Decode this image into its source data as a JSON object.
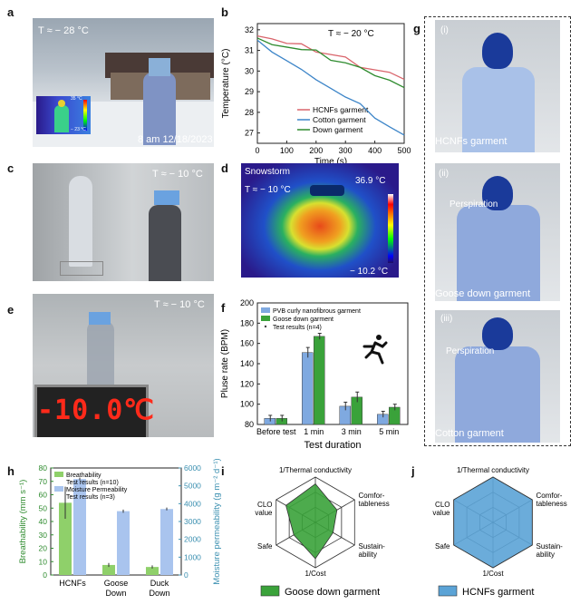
{
  "panels": {
    "a": {
      "letter": "a",
      "temp": "T ≈ − 28 °C",
      "timestamp": "8 am  12/18/2023",
      "thermo_hi": "35 °C",
      "thermo_lo": "− 23 °C"
    },
    "b": {
      "letter": "b",
      "temp": "T ≈ − 20 °C"
    },
    "c": {
      "letter": "c",
      "temp": "T ≈ − 10 °C"
    },
    "d": {
      "letter": "d",
      "title": "Snowstorm",
      "temp": "T ≈ − 10 °C",
      "hi": "36.9 °C",
      "lo": "− 10.2 °C"
    },
    "e": {
      "letter": "e",
      "temp": "T ≈ − 10 °C",
      "display": "-10.0℃"
    },
    "f": {
      "letter": "f"
    },
    "g": {
      "letter": "g",
      "sub1": "(i)",
      "label1": "HCNFs garment",
      "sub2": "(ii)",
      "persp2": "Perspiration",
      "label2": "Goose down garment",
      "sub3": "(iii)",
      "persp3": "Perspiration",
      "label3": "Cotton garment"
    },
    "h": {
      "letter": "h"
    },
    "i": {
      "letter": "i",
      "legend": "Goose down garment"
    },
    "j": {
      "letter": "j",
      "legend": "HCNFs garment"
    }
  },
  "radar_labels": {
    "top": "1/Thermal conductivity",
    "right1": "Comfor-",
    "right2": "tableness",
    "rbot1": "Sustain-",
    "rbot2": "ability",
    "bottom": "1/Cost",
    "left_b": "Safe",
    "left1": "CLO",
    "left2": "value"
  },
  "colors": {
    "red": "#d9646b",
    "blue": "#3d85c8",
    "green": "#2e8b2e",
    "goose": "#3aa23a",
    "hcnf": "#5ba3d6",
    "barblue": "#7fa9e0"
  },
  "chart_data": [
    {
      "type": "line",
      "xlabel": "Time (s)",
      "ylabel": "Temperature (°C)",
      "xlim": [
        0,
        500
      ],
      "ylim": [
        26.5,
        32.3
      ],
      "xticks": [
        0,
        100,
        200,
        300,
        400,
        500
      ],
      "yticks": [
        27,
        28,
        29,
        30,
        31,
        32
      ],
      "series": [
        {
          "name": "HCNFs garment",
          "x": [
            0,
            50,
            100,
            150,
            200,
            250,
            300,
            350,
            400,
            450,
            500
          ],
          "y": [
            31.7,
            31.6,
            31.3,
            31.2,
            31.0,
            30.8,
            30.6,
            30.3,
            30.1,
            29.9,
            29.6
          ]
        },
        {
          "name": "Cotton garment",
          "x": [
            0,
            50,
            100,
            150,
            200,
            250,
            300,
            350,
            400,
            450,
            500
          ],
          "y": [
            31.5,
            31.0,
            30.5,
            30.0,
            29.7,
            29.2,
            28.7,
            28.3,
            27.8,
            27.3,
            26.9
          ]
        },
        {
          "name": "Down garment",
          "x": [
            0,
            50,
            100,
            150,
            200,
            250,
            300,
            350,
            400,
            450,
            500
          ],
          "y": [
            31.6,
            31.4,
            31.2,
            31.0,
            30.9,
            30.6,
            30.4,
            30.1,
            29.9,
            29.6,
            29.2
          ]
        }
      ]
    },
    {
      "type": "bar",
      "xlabel": "Test duration",
      "ylabel": "Pluse rate  (BPM)",
      "ylim": [
        80,
        200
      ],
      "yticks": [
        80,
        100,
        120,
        140,
        160,
        180,
        200
      ],
      "categories": [
        "Before test",
        "1 min",
        "3 min",
        "5 min"
      ],
      "legend": [
        "PVB curly nanofibrous garment",
        "Goose down garment",
        "Test results (n=4)"
      ],
      "series": [
        {
          "name": "PVB curly nanofibrous garment",
          "values": [
            86,
            151,
            98,
            90
          ],
          "err": [
            3,
            5,
            4,
            3
          ]
        },
        {
          "name": "Goose down garment",
          "values": [
            86,
            167,
            107,
            97
          ],
          "err": [
            3,
            3,
            5,
            3
          ]
        }
      ]
    },
    {
      "type": "bar",
      "ylabel_left": "Breathability  (mm s⁻¹)",
      "ylabel_right": "Moisture permeability  (g m⁻² d⁻¹)",
      "ylim_left": [
        0,
        80
      ],
      "yticks_left": [
        0,
        10,
        20,
        30,
        40,
        50,
        60,
        70,
        80
      ],
      "ylim_right": [
        0,
        6000
      ],
      "yticks_right": [
        0,
        1000,
        2000,
        3000,
        4000,
        5000,
        6000
      ],
      "categories": [
        "HCNFs",
        "Goose Down",
        "Duck Down"
      ],
      "legend": [
        "Breathability",
        "Test results (n=10)",
        "Moisture Permeability",
        "Test results (n=3)"
      ],
      "series": [
        {
          "name": "Breathability",
          "values": [
            54,
            7.5,
            6
          ],
          "err": [
            12,
            1.5,
            1.2
          ]
        },
        {
          "name": "Moisture Permeability",
          "values": [
            5380,
            3580,
            3700
          ],
          "err": [
            80,
            90,
            80
          ]
        }
      ]
    },
    {
      "type": "radar",
      "axes": [
        "1/Thermal conductivity",
        "Comfortableness",
        "Sustainability",
        "1/Cost",
        "Safe",
        "CLO value"
      ],
      "series": [
        {
          "name": "Goose down garment",
          "values": [
            0.85,
            0.55,
            0.45,
            0.8,
            0.55,
            0.75
          ]
        }
      ]
    },
    {
      "type": "radar",
      "axes": [
        "1/Thermal conductivity",
        "Comfortableness",
        "Sustainability",
        "1/Cost",
        "Safe",
        "CLO value"
      ],
      "series": [
        {
          "name": "HCNFs garment",
          "values": [
            1,
            1,
            1,
            1,
            1,
            1
          ]
        }
      ]
    }
  ]
}
